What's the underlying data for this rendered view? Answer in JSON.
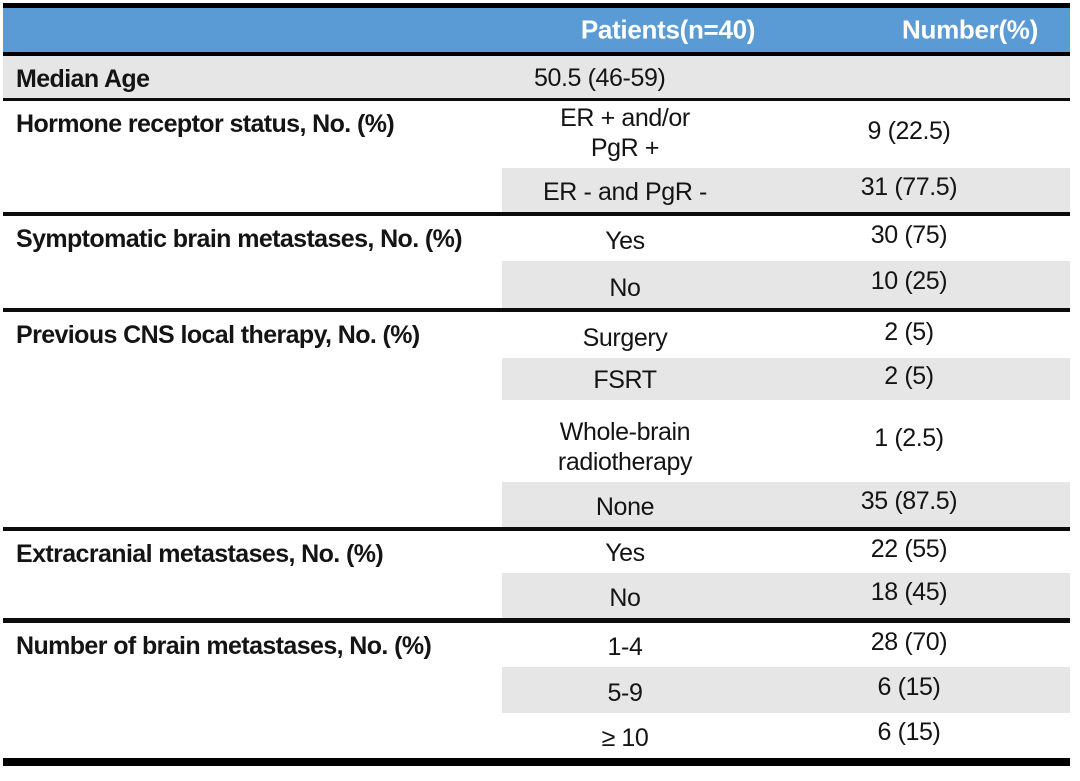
{
  "header": {
    "patients_label": "Patients(n=40)",
    "number_label": "Number(%)"
  },
  "colors": {
    "header_bg": "#5B9BD5",
    "band_bg": "#E7E6E6",
    "rule": "#000000",
    "header_text": "#ffffff"
  },
  "groups": [
    {
      "id": "median-age",
      "label": "Median Age",
      "full_shade": true,
      "rows": [
        {
          "lines": [
            "50.5 (46-59)"
          ],
          "number": "",
          "shaded": false,
          "left_align": true
        }
      ]
    },
    {
      "id": "hormone-receptor-status",
      "label": "Hormone receptor status, No. (%)",
      "full_shade": false,
      "rows": [
        {
          "lines": [
            "ER + and/or",
            "PgR +"
          ],
          "number": "9 (22.5)",
          "shaded": false
        },
        {
          "lines": [
            "ER - and PgR -"
          ],
          "number": "31 (77.5)",
          "shaded": true
        }
      ]
    },
    {
      "id": "symptomatic-brain-metastases",
      "label": "Symptomatic brain metastases, No. (%)",
      "full_shade": false,
      "rows": [
        {
          "lines": [
            "Yes"
          ],
          "number": "30 (75)",
          "shaded": false
        },
        {
          "lines": [
            "No"
          ],
          "number": "10 (25)",
          "shaded": true
        }
      ]
    },
    {
      "id": "previous-cns-local-therapy",
      "label": "Previous CNS local therapy, No. (%)",
      "full_shade": false,
      "rows": [
        {
          "lines": [
            "Surgery"
          ],
          "number": "2 (5)",
          "shaded": false
        },
        {
          "lines": [
            "FSRT"
          ],
          "number": "2 (5)",
          "shaded": true
        },
        {
          "lines": [
            "Whole-brain",
            "radiotherapy"
          ],
          "number": "1 (2.5)",
          "shaded": false
        },
        {
          "lines": [
            "None"
          ],
          "number": "35 (87.5)",
          "shaded": true
        }
      ]
    },
    {
      "id": "extracranial-metastases",
      "label": "Extracranial metastases, No. (%)",
      "full_shade": false,
      "rows": [
        {
          "lines": [
            "Yes"
          ],
          "number": "22 (55)",
          "shaded": false
        },
        {
          "lines": [
            "No"
          ],
          "number": "18 (45)",
          "shaded": true
        }
      ]
    },
    {
      "id": "number-of-brain-metastases",
      "label": "Number of brain metastases, No. (%)",
      "full_shade": false,
      "rows": [
        {
          "lines": [
            "1-4"
          ],
          "number": "28 (70)",
          "shaded": false
        },
        {
          "lines": [
            "5-9"
          ],
          "number": "6 (15)",
          "shaded": true
        },
        {
          "lines": [
            "≥ 10"
          ],
          "number": "6 (15)",
          "shaded": false
        }
      ]
    }
  ],
  "chart_data": {
    "type": "table",
    "title": "",
    "columns": [
      "",
      "Patients(n=40)",
      "Number(%)"
    ],
    "rows": [
      [
        "Median Age",
        "50.5 (46-59)",
        ""
      ],
      [
        "Hormone receptor status, No. (%)",
        "ER + and/or PgR +",
        "9 (22.5)"
      ],
      [
        "",
        "ER - and PgR -",
        "31 (77.5)"
      ],
      [
        "Symptomatic brain metastases, No. (%)",
        "Yes",
        "30 (75)"
      ],
      [
        "",
        "No",
        "10 (25)"
      ],
      [
        "Previous CNS local therapy, No. (%)",
        "Surgery",
        "2 (5)"
      ],
      [
        "",
        "FSRT",
        "2 (5)"
      ],
      [
        "",
        "Whole-brain radiotherapy",
        "1 (2.5)"
      ],
      [
        "",
        "None",
        "35 (87.5)"
      ],
      [
        "Extracranial metastases, No. (%)",
        "Yes",
        "22 (55)"
      ],
      [
        "",
        "No",
        "18 (45)"
      ],
      [
        "Number of brain metastases, No. (%)",
        "1-4",
        "28 (70)"
      ],
      [
        "",
        "5-9",
        "6 (15)"
      ],
      [
        "",
        "≥ 10",
        "6 (15)"
      ]
    ]
  }
}
